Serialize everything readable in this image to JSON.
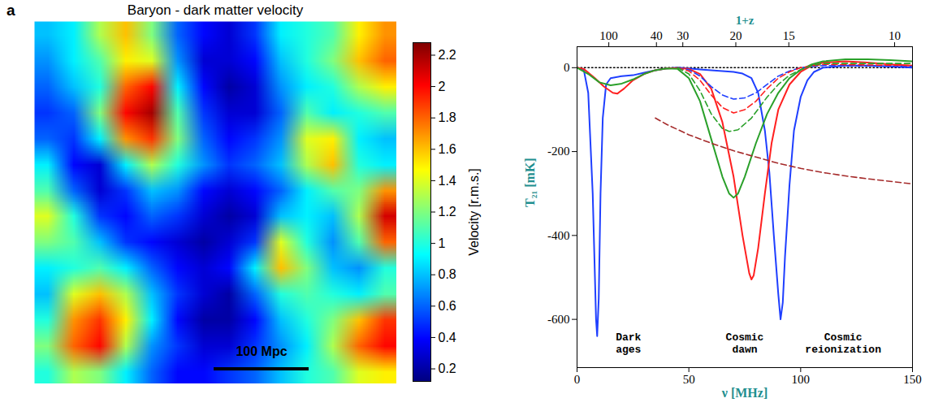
{
  "chart_data": [
    {
      "type": "heatmap",
      "panel_label": "a",
      "title": "Baryon - dark matter velocity",
      "tick_labels": false,
      "scale_bar": "100 Mpc",
      "cells": [
        [
          0.8,
          0.9,
          1.3,
          1.6,
          1.2,
          0.6,
          0.4,
          0.3,
          0.5,
          0.9,
          1.0,
          1.1,
          1.5,
          1.7
        ],
        [
          0.7,
          0.9,
          1.1,
          1.5,
          1.4,
          0.7,
          0.3,
          0.3,
          0.4,
          0.8,
          1.0,
          1.2,
          1.6,
          1.8
        ],
        [
          0.6,
          0.8,
          1.0,
          1.8,
          2.0,
          0.9,
          0.4,
          0.2,
          0.3,
          0.7,
          0.9,
          1.0,
          1.3,
          1.5
        ],
        [
          0.5,
          0.6,
          1.2,
          2.0,
          2.2,
          1.1,
          0.5,
          0.3,
          0.3,
          0.6,
          1.1,
          0.9,
          1.0,
          1.1
        ],
        [
          0.6,
          0.5,
          0.9,
          1.7,
          1.9,
          1.2,
          0.6,
          0.4,
          0.5,
          0.7,
          1.4,
          1.5,
          0.9,
          0.8
        ],
        [
          0.9,
          0.4,
          0.3,
          0.9,
          1.3,
          1.0,
          0.7,
          0.5,
          0.6,
          0.8,
          1.3,
          1.6,
          1.0,
          0.9
        ],
        [
          1.1,
          0.6,
          0.3,
          0.5,
          0.8,
          0.7,
          0.4,
          0.3,
          0.4,
          0.6,
          0.9,
          1.1,
          1.2,
          1.7
        ],
        [
          1.4,
          1.0,
          0.5,
          0.4,
          0.6,
          0.5,
          0.3,
          0.2,
          0.3,
          0.8,
          0.9,
          0.8,
          1.3,
          2.1
        ],
        [
          1.2,
          1.1,
          0.8,
          0.5,
          0.4,
          0.3,
          0.2,
          0.3,
          0.5,
          1.4,
          1.0,
          0.7,
          1.1,
          1.8
        ],
        [
          0.9,
          1.0,
          1.1,
          0.9,
          0.6,
          0.4,
          0.3,
          0.4,
          0.9,
          1.6,
          1.2,
          0.8,
          0.7,
          1.0
        ],
        [
          0.8,
          1.4,
          1.6,
          1.3,
          0.8,
          0.5,
          0.3,
          0.2,
          0.6,
          1.0,
          1.1,
          1.0,
          0.9,
          1.1
        ],
        [
          1.0,
          1.7,
          1.9,
          1.5,
          0.9,
          0.4,
          0.2,
          0.2,
          0.4,
          0.8,
          1.0,
          1.2,
          1.6,
          1.9
        ],
        [
          1.2,
          1.8,
          2.0,
          1.3,
          0.7,
          0.5,
          0.3,
          0.3,
          0.5,
          0.7,
          0.9,
          1.3,
          1.8,
          2.0
        ],
        [
          1.0,
          1.3,
          1.2,
          0.9,
          0.6,
          0.4,
          0.4,
          0.5,
          0.6,
          0.8,
          1.0,
          1.1,
          1.4,
          1.5
        ]
      ],
      "colorbar": {
        "label": "Velocity [r.m.s.]",
        "lim": [
          0.12,
          2.28
        ],
        "ticks": [
          0.2,
          0.4,
          0.6,
          0.8,
          1,
          1.2,
          1.4,
          1.6,
          1.8,
          2,
          2.2
        ]
      }
    },
    {
      "type": "line",
      "xlabel": "ν [MHz]",
      "ylabel": "T₂₁ [mK]",
      "x2label": "1+z",
      "xlim": [
        0,
        150
      ],
      "xticks": [
        0,
        50,
        100,
        150
      ],
      "ylim": [
        -715,
        50
      ],
      "yticks": [
        -600,
        -400,
        -200,
        0
      ],
      "x2ticks": [
        {
          "value": 14.2,
          "label": "100"
        },
        {
          "value": 35.5,
          "label": "40"
        },
        {
          "value": 47.3,
          "label": "30"
        },
        {
          "value": 71.0,
          "label": "20"
        },
        {
          "value": 94.7,
          "label": "15"
        },
        {
          "value": 142.0,
          "label": "10"
        }
      ],
      "series": [
        {
          "color": "#000000",
          "line_style": "dotted",
          "x": [
            0,
            150
          ],
          "values": [
            0,
            0
          ]
        },
        {
          "color": "#1f3fff",
          "line_style": "solid",
          "x": [
            0,
            3,
            5,
            7,
            8.5,
            9,
            9.7,
            10.5,
            11.5,
            13,
            15,
            20,
            25,
            30,
            35,
            40,
            45,
            50,
            55,
            60,
            65,
            70,
            74,
            78,
            81,
            84,
            86,
            88,
            90,
            91,
            92,
            93,
            95,
            97,
            100,
            103,
            106,
            110,
            120,
            130,
            140,
            150
          ],
          "values": [
            0,
            -5,
            -60,
            -300,
            -600,
            -640,
            -550,
            -300,
            -120,
            -40,
            -25,
            -20,
            -18,
            -12,
            -6,
            -2,
            0,
            -2,
            -4,
            -6,
            -8,
            -10,
            -14,
            -25,
            -60,
            -150,
            -250,
            -400,
            -540,
            -600,
            -560,
            -450,
            -280,
            -150,
            -70,
            -30,
            -10,
            0,
            5,
            5,
            3,
            0
          ]
        },
        {
          "color": "#ff2020",
          "line_style": "solid",
          "x": [
            0,
            3,
            8,
            12,
            16,
            18,
            21,
            25,
            30,
            35,
            40,
            45,
            50,
            55,
            60,
            65,
            70,
            74,
            77,
            78,
            79,
            81,
            84,
            87,
            90,
            95,
            100,
            105,
            110,
            120,
            130,
            140,
            150
          ],
          "values": [
            0,
            -3,
            -25,
            -45,
            -60,
            -62,
            -50,
            -30,
            -15,
            -6,
            -2,
            -1,
            -3,
            -15,
            -50,
            -130,
            -260,
            -400,
            -490,
            -505,
            -495,
            -430,
            -300,
            -180,
            -100,
            -40,
            -10,
            5,
            12,
            15,
            12,
            8,
            5
          ]
        },
        {
          "color": "#2aa02a",
          "line_style": "solid",
          "x": [
            0,
            5,
            10,
            15,
            20,
            25,
            30,
            35,
            40,
            45,
            50,
            55,
            60,
            65,
            68,
            70,
            72,
            75,
            80,
            85,
            90,
            95,
            100,
            105,
            110,
            120,
            130,
            140,
            150
          ],
          "values": [
            0,
            -15,
            -35,
            -42,
            -38,
            -28,
            -15,
            -6,
            -2,
            -3,
            -25,
            -80,
            -170,
            -260,
            -300,
            -310,
            -300,
            -260,
            -180,
            -110,
            -60,
            -25,
            -5,
            8,
            15,
            20,
            20,
            18,
            15
          ]
        },
        {
          "color": "#1f3fff",
          "line_style": "dashed",
          "x": [
            45,
            50,
            55,
            60,
            65,
            70,
            75,
            80,
            85,
            90,
            95,
            100,
            110,
            150
          ],
          "values": [
            0,
            -5,
            -20,
            -45,
            -65,
            -75,
            -72,
            -60,
            -40,
            -20,
            -8,
            0,
            5,
            3
          ]
        },
        {
          "color": "#ff2020",
          "line_style": "dashed",
          "x": [
            45,
            50,
            55,
            60,
            65,
            70,
            75,
            80,
            85,
            90,
            95,
            100,
            110,
            150
          ],
          "values": [
            0,
            -8,
            -30,
            -65,
            -95,
            -108,
            -100,
            -80,
            -50,
            -25,
            -10,
            0,
            8,
            5
          ]
        },
        {
          "color": "#2aa02a",
          "line_style": "dashed",
          "x": [
            45,
            50,
            55,
            60,
            65,
            68,
            72,
            78,
            85,
            90,
            95,
            100,
            105,
            110,
            150
          ],
          "values": [
            0,
            -15,
            -55,
            -110,
            -145,
            -152,
            -148,
            -120,
            -70,
            -40,
            -18,
            -5,
            5,
            10,
            10
          ]
        },
        {
          "color": "#a52a2a",
          "line_style": "dashed",
          "x": [
            35,
            40,
            50,
            60,
            70,
            80,
            90,
            100,
            110,
            120,
            130,
            140,
            150
          ],
          "values": [
            -120,
            -135,
            -160,
            -180,
            -198,
            -213,
            -228,
            -240,
            -250,
            -258,
            -265,
            -271,
            -277
          ]
        }
      ],
      "annotations": [
        {
          "text": "Dark ages",
          "x": 23,
          "y": -655
        },
        {
          "text": "Cosmic dawn",
          "x": 75,
          "y": -655
        },
        {
          "text": "Cosmic reionization",
          "x": 119,
          "y": -655
        }
      ]
    }
  ]
}
